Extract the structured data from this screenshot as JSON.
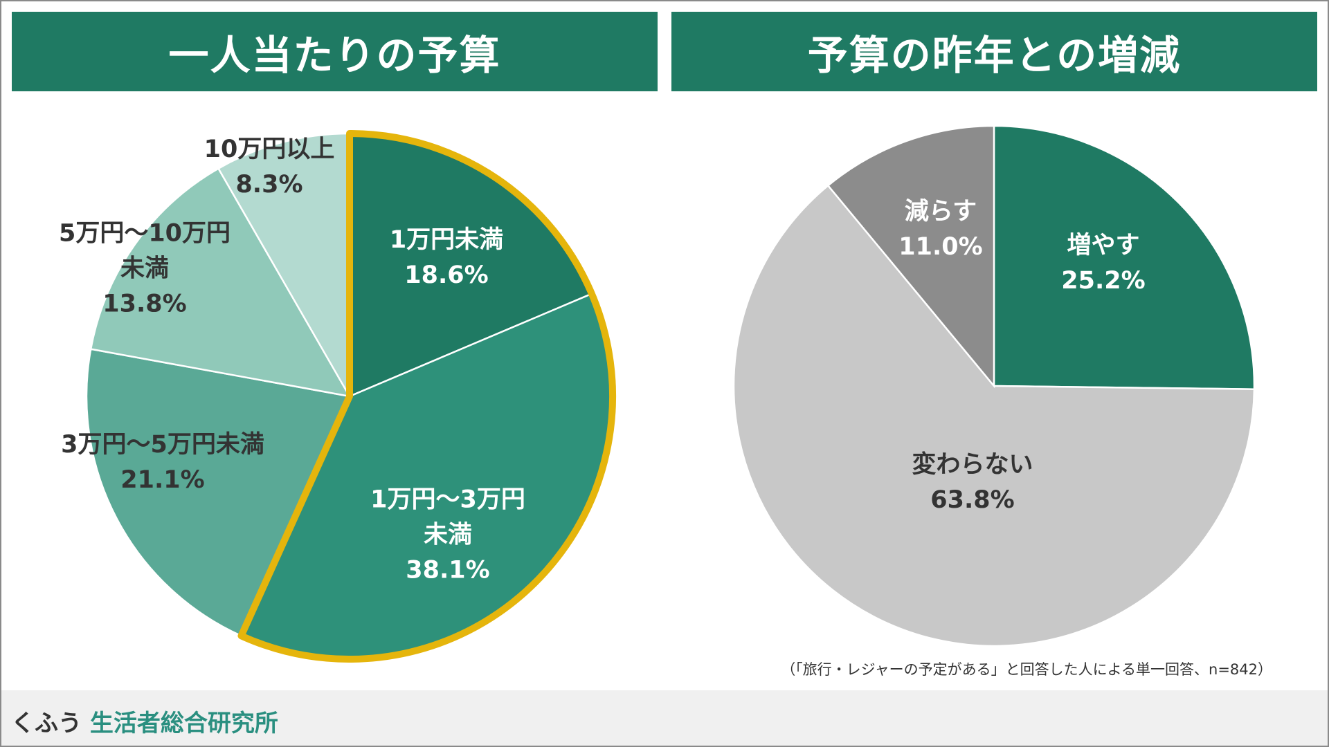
{
  "chart_data": [
    {
      "type": "pie",
      "title": "一人当たりの予算",
      "slices": [
        {
          "label": "1万円未満",
          "value": 18.6,
          "value_label": "18.6%",
          "color": "#1f7a63",
          "highlighted": true
        },
        {
          "label": "1万円～3万円未満",
          "value": 38.1,
          "value_label": "38.1%",
          "color": "#2e917a",
          "highlighted": true
        },
        {
          "label": "3万円～5万円未満",
          "value": 21.1,
          "value_label": "21.1%",
          "color": "#5aa996",
          "highlighted": false
        },
        {
          "label": "5万円～10万円未満",
          "value": 13.8,
          "value_label": "13.8%",
          "color": "#90c9b9",
          "highlighted": false
        },
        {
          "label": "10万円以上",
          "value": 8.3,
          "value_label": "8.3%",
          "color": "#b3dad0",
          "highlighted": false
        }
      ],
      "highlight_color": "#e5b50c"
    },
    {
      "type": "pie",
      "title": "予算の昨年との増減",
      "slices": [
        {
          "label": "増やす",
          "value": 25.2,
          "value_label": "25.2%",
          "color": "#1f7a63"
        },
        {
          "label": "変わらない",
          "value": 63.8,
          "value_label": "63.8%",
          "color": "#c8c8c8"
        },
        {
          "label": "減らす",
          "value": 11.0,
          "value_label": "11.0%",
          "color": "#8c8c8c"
        }
      ]
    }
  ],
  "labels": {
    "l0": [
      "1万円未満"
    ],
    "l1": [
      "1万円～3万円",
      "未満"
    ],
    "l2": [
      "3万円～5万円未満"
    ],
    "l3": [
      "5万円～10万円",
      "未満"
    ],
    "l4": [
      "10万円以上"
    ],
    "r0": [
      "増やす"
    ],
    "r1": [
      "変わらない"
    ],
    "r2": [
      "減らす"
    ]
  },
  "note": "（「旅行・レジャーの予定がある」と回答した人による単一回答、n=842）",
  "footer": {
    "logo_a": "くふう",
    "logo_b": "生活者総合研究所"
  }
}
